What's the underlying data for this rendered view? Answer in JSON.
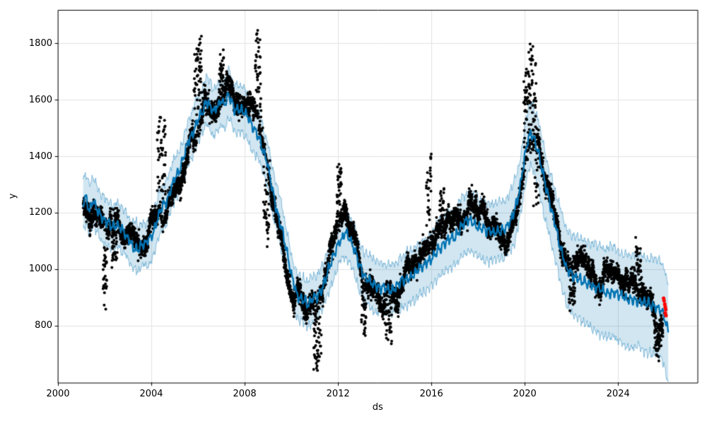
{
  "chart_data": {
    "type": "line",
    "title": "",
    "xlabel": "ds",
    "ylabel": "y",
    "xlim": [
      2000,
      2027.4
    ],
    "ylim": [
      598,
      1918
    ],
    "xticks": [
      2000,
      2004,
      2008,
      2012,
      2016,
      2020,
      2024
    ],
    "yticks": [
      800,
      1000,
      1200,
      1400,
      1600,
      1800
    ],
    "grid": true,
    "grid_color": "#e2e2e2",
    "spine_color": "#000000",
    "background": "#ffffff",
    "legend": null,
    "series": [
      {
        "name": "yhat-forecast-line",
        "type": "line",
        "color": "#0072B2",
        "width": 2.2,
        "jitter": {
          "amp1": 12,
          "freq1": 5.1,
          "amp2": 7,
          "freq2": 11.3,
          "ar_sigma": 4
        },
        "points": [
          [
            2001.08,
            1235
          ],
          [
            2001.2,
            1250
          ],
          [
            2001.35,
            1205
          ],
          [
            2001.5,
            1240
          ],
          [
            2001.65,
            1215
          ],
          [
            2001.8,
            1190
          ],
          [
            2002.0,
            1170
          ],
          [
            2002.2,
            1155
          ],
          [
            2002.4,
            1150
          ],
          [
            2002.6,
            1160
          ],
          [
            2002.8,
            1135
          ],
          [
            2003.0,
            1110
          ],
          [
            2003.2,
            1085
          ],
          [
            2003.4,
            1075
          ],
          [
            2003.6,
            1090
          ],
          [
            2003.8,
            1085
          ],
          [
            2004.0,
            1110
          ],
          [
            2004.2,
            1160
          ],
          [
            2004.4,
            1205
          ],
          [
            2004.6,
            1230
          ],
          [
            2004.8,
            1275
          ],
          [
            2005.0,
            1320
          ],
          [
            2005.2,
            1340
          ],
          [
            2005.4,
            1395
          ],
          [
            2005.6,
            1450
          ],
          [
            2005.8,
            1485
          ],
          [
            2006.0,
            1530
          ],
          [
            2006.2,
            1560
          ],
          [
            2006.35,
            1600
          ],
          [
            2006.5,
            1580
          ],
          [
            2006.65,
            1555
          ],
          [
            2006.8,
            1575
          ],
          [
            2007.0,
            1595
          ],
          [
            2007.15,
            1580
          ],
          [
            2007.3,
            1615
          ],
          [
            2007.45,
            1590
          ],
          [
            2007.6,
            1560
          ],
          [
            2007.75,
            1565
          ],
          [
            2007.9,
            1570
          ],
          [
            2008.1,
            1540
          ],
          [
            2008.3,
            1505
          ],
          [
            2008.5,
            1480
          ],
          [
            2008.65,
            1460
          ],
          [
            2008.8,
            1420
          ],
          [
            2009.0,
            1355
          ],
          [
            2009.2,
            1270
          ],
          [
            2009.4,
            1200
          ],
          [
            2009.6,
            1140
          ],
          [
            2009.8,
            1060
          ],
          [
            2010.0,
            975
          ],
          [
            2010.15,
            935
          ],
          [
            2010.3,
            905
          ],
          [
            2010.5,
            885
          ],
          [
            2010.7,
            880
          ],
          [
            2010.9,
            890
          ],
          [
            2011.1,
            900
          ],
          [
            2011.3,
            930
          ],
          [
            2011.5,
            975
          ],
          [
            2011.7,
            1020
          ],
          [
            2011.9,
            1065
          ],
          [
            2012.1,
            1105
          ],
          [
            2012.3,
            1130
          ],
          [
            2012.5,
            1110
          ],
          [
            2012.7,
            1065
          ],
          [
            2012.9,
            1010
          ],
          [
            2013.1,
            980
          ],
          [
            2013.3,
            965
          ],
          [
            2013.5,
            950
          ],
          [
            2013.7,
            940
          ],
          [
            2013.9,
            935
          ],
          [
            2014.1,
            928
          ],
          [
            2014.3,
            925
          ],
          [
            2014.5,
            940
          ],
          [
            2014.7,
            955
          ],
          [
            2014.9,
            965
          ],
          [
            2015.1,
            975
          ],
          [
            2015.3,
            985
          ],
          [
            2015.5,
            1000
          ],
          [
            2015.7,
            1015
          ],
          [
            2015.9,
            1025
          ],
          [
            2016.1,
            1050
          ],
          [
            2016.3,
            1070
          ],
          [
            2016.5,
            1085
          ],
          [
            2016.7,
            1100
          ],
          [
            2016.9,
            1105
          ],
          [
            2017.1,
            1120
          ],
          [
            2017.3,
            1150
          ],
          [
            2017.5,
            1165
          ],
          [
            2017.7,
            1170
          ],
          [
            2017.9,
            1158
          ],
          [
            2018.1,
            1145
          ],
          [
            2018.3,
            1138
          ],
          [
            2018.5,
            1130
          ],
          [
            2018.7,
            1132
          ],
          [
            2018.9,
            1136
          ],
          [
            2019.1,
            1140
          ],
          [
            2019.3,
            1160
          ],
          [
            2019.5,
            1190
          ],
          [
            2019.7,
            1245
          ],
          [
            2019.85,
            1310
          ],
          [
            2020.0,
            1395
          ],
          [
            2020.15,
            1460
          ],
          [
            2020.25,
            1480
          ],
          [
            2020.4,
            1455
          ],
          [
            2020.55,
            1420
          ],
          [
            2020.7,
            1360
          ],
          [
            2020.85,
            1305
          ],
          [
            2021.0,
            1255
          ],
          [
            2021.15,
            1205
          ],
          [
            2021.3,
            1160
          ],
          [
            2021.45,
            1110
          ],
          [
            2021.6,
            1060
          ],
          [
            2021.8,
            1005
          ],
          [
            2022.0,
            985
          ],
          [
            2022.2,
            975
          ],
          [
            2022.4,
            965
          ],
          [
            2022.6,
            955
          ],
          [
            2022.8,
            945
          ],
          [
            2023.0,
            935
          ],
          [
            2023.2,
            930
          ],
          [
            2023.4,
            928
          ],
          [
            2023.6,
            922
          ],
          [
            2023.8,
            915
          ],
          [
            2024.0,
            905
          ],
          [
            2024.2,
            898
          ],
          [
            2024.4,
            893
          ],
          [
            2024.6,
            888
          ],
          [
            2024.8,
            885
          ],
          [
            2025.0,
            880
          ],
          [
            2025.2,
            876
          ],
          [
            2025.4,
            870
          ],
          [
            2025.6,
            866
          ],
          [
            2025.8,
            858
          ],
          [
            2025.95,
            840
          ],
          [
            2026.05,
            805
          ],
          [
            2026.15,
            785
          ]
        ]
      },
      {
        "name": "uncertainty-band",
        "type": "band",
        "color": "#0072B2",
        "fill_alpha": 0.18,
        "edge_alpha": 0.42,
        "edge_width": 1,
        "edge_jitter": {
          "amp1": 9,
          "freq1": 6.3,
          "amp2": 5,
          "freq2": 13.7,
          "ar_sigma": 5
        },
        "halfwidth_points": [
          [
            2001.08,
            95
          ],
          [
            2002.0,
            80
          ],
          [
            2003.0,
            72
          ],
          [
            2006.0,
            80
          ],
          [
            2008.0,
            82
          ],
          [
            2010.0,
            80
          ],
          [
            2012.0,
            84
          ],
          [
            2014.0,
            88
          ],
          [
            2016.0,
            94
          ],
          [
            2017.0,
            100
          ],
          [
            2019.0,
            105
          ],
          [
            2020.3,
            110
          ],
          [
            2021.0,
            118
          ],
          [
            2022.0,
            135
          ],
          [
            2023.0,
            150
          ],
          [
            2024.0,
            160
          ],
          [
            2025.0,
            168
          ],
          [
            2026.15,
            172
          ]
        ]
      },
      {
        "name": "observed-actuals",
        "type": "scatter-generated",
        "color": "#000000",
        "marker_radius": 2.0,
        "t_start": 2001.08,
        "t_end": 2025.92,
        "points_per_year": 260,
        "noise": {
          "seed": 1337,
          "ar_phi": 0.997,
          "ar_sigma": 5.5,
          "wander_max": 85,
          "point_sigma": 16
        },
        "value_clamp": [
          640,
          1858
        ],
        "spike_events": [
          [
            2001.92,
            2002.12,
            -290
          ],
          [
            2002.3,
            2002.55,
            -150
          ],
          [
            2004.25,
            2004.62,
            370
          ],
          [
            2005.82,
            2006.15,
            330
          ],
          [
            2006.9,
            2007.1,
            130
          ],
          [
            2008.45,
            2008.7,
            310
          ],
          [
            2008.8,
            2009.05,
            -270
          ],
          [
            2010.95,
            2011.3,
            -250
          ],
          [
            2011.95,
            2012.15,
            200
          ],
          [
            2013.0,
            2013.2,
            -150
          ],
          [
            2014.05,
            2014.3,
            -155
          ],
          [
            2015.78,
            2016.0,
            310
          ],
          [
            2016.35,
            2016.55,
            140
          ],
          [
            2019.95,
            2020.5,
            330
          ],
          [
            2020.35,
            2020.6,
            -240
          ],
          [
            2021.9,
            2022.15,
            -130
          ],
          [
            2024.75,
            2024.98,
            165
          ],
          [
            2025.55,
            2025.85,
            -90
          ]
        ]
      },
      {
        "name": "recent-anomaly-points",
        "type": "scatter",
        "color": "#ff0000",
        "marker_radius": 2.6,
        "points": [
          [
            2025.95,
            897
          ],
          [
            2025.97,
            888
          ],
          [
            2026.0,
            876
          ],
          [
            2026.02,
            866
          ],
          [
            2026.04,
            857
          ],
          [
            2026.02,
            845
          ],
          [
            2026.05,
            836
          ]
        ]
      }
    ]
  }
}
